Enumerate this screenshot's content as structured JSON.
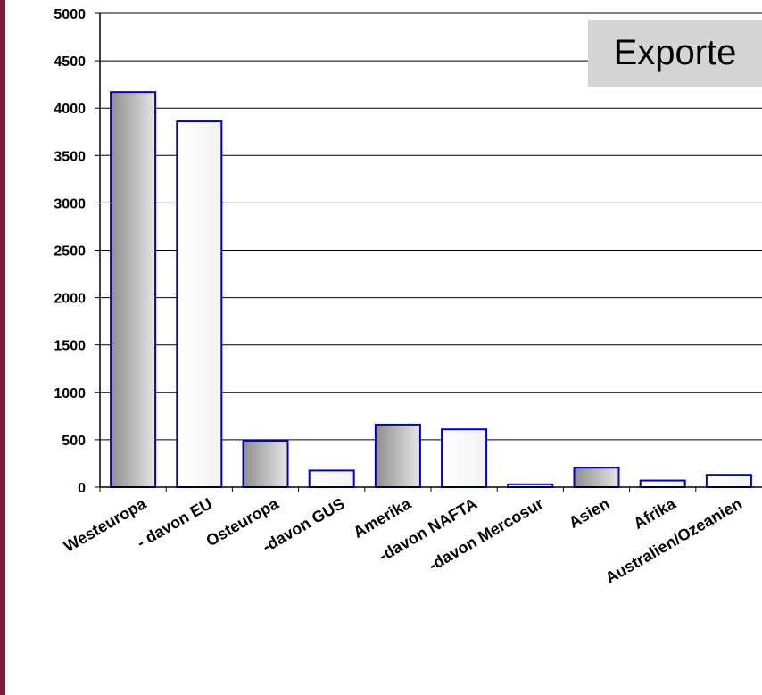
{
  "chart_data": {
    "type": "bar",
    "title": "Exporte",
    "xlabel": "",
    "ylabel": "",
    "ylim": [
      0,
      5000
    ],
    "yticks": [
      0,
      500,
      1000,
      1500,
      2000,
      2500,
      3000,
      3500,
      4000,
      4500,
      5000
    ],
    "grid": true,
    "categories": [
      "Westeuropa",
      "- davon EU",
      "Osteuropa",
      "-davon GUS",
      "Amerika",
      "-davon NAFTA",
      "-davon Mercosur",
      "Asien",
      "Afrika",
      "Australien/Ozeanien"
    ],
    "values": [
      4170,
      3860,
      490,
      175,
      660,
      610,
      30,
      205,
      70,
      130
    ],
    "shaded": [
      true,
      false,
      true,
      false,
      true,
      false,
      false,
      true,
      false,
      false
    ],
    "colors": {
      "bar_edge": "#0000cc",
      "frame": "#7a1f3a",
      "grid": "#000000",
      "title_bg": "#d4d4d4"
    }
  }
}
